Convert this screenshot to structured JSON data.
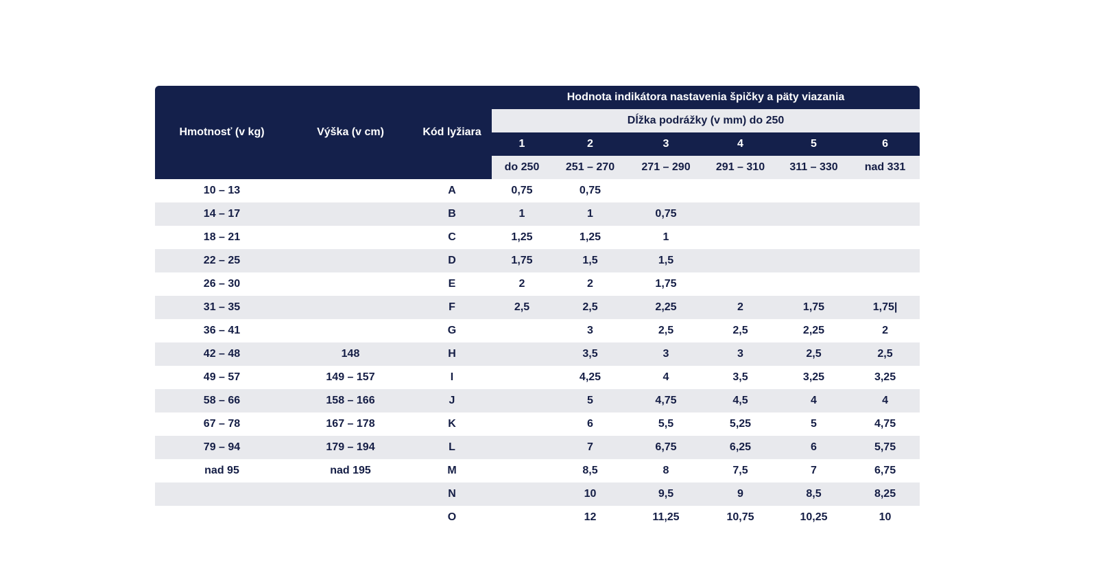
{
  "header": {
    "weight": "Hmotnosť (v kg)",
    "height": "Výška (v cm)",
    "code": "Kód lyžiara",
    "indicator": "Hodnota indikátora nastavenia špičky a päty viazania",
    "sole_length": "Dĺžka podrážky (v mm) do 250",
    "column_numbers": [
      "1",
      "2",
      "3",
      "4",
      "5",
      "6"
    ],
    "column_ranges": [
      "do 250",
      "251 – 270",
      "271 – 290",
      "291 – 310",
      "311 – 330",
      "nad 331"
    ]
  },
  "rows": [
    {
      "weight": "10 – 13",
      "height": "",
      "code": "A",
      "v": [
        "0,75",
        "0,75",
        "",
        "",
        "",
        ""
      ]
    },
    {
      "weight": "14 – 17",
      "height": "",
      "code": "B",
      "v": [
        "1",
        "1",
        "0,75",
        "",
        "",
        ""
      ]
    },
    {
      "weight": "18 – 21",
      "height": "",
      "code": "C",
      "v": [
        "1,25",
        "1,25",
        "1",
        "",
        "",
        ""
      ]
    },
    {
      "weight": "22 – 25",
      "height": "",
      "code": "D",
      "v": [
        "1,75",
        "1,5",
        "1,5",
        "",
        "",
        ""
      ]
    },
    {
      "weight": "26 – 30",
      "height": "",
      "code": "E",
      "v": [
        "2",
        "2",
        "1,75",
        "",
        "",
        ""
      ]
    },
    {
      "weight": "31 – 35",
      "height": "",
      "code": "F",
      "v": [
        "2,5",
        "2,5",
        "2,25",
        "2",
        "1,75",
        "1,75|"
      ]
    },
    {
      "weight": "36 – 41",
      "height": "",
      "code": "G",
      "v": [
        "",
        "3",
        "2,5",
        "2,5",
        "2,25",
        "2"
      ]
    },
    {
      "weight": "42 – 48",
      "height": "148",
      "code": "H",
      "v": [
        "",
        "3,5",
        "3",
        "3",
        "2,5",
        "2,5"
      ]
    },
    {
      "weight": "49 – 57",
      "height": "149 – 157",
      "code": "I",
      "v": [
        "",
        "4,25",
        "4",
        "3,5",
        "3,25",
        "3,25"
      ]
    },
    {
      "weight": "58 – 66",
      "height": "158 – 166",
      "code": "J",
      "v": [
        "",
        "5",
        "4,75",
        "4,5",
        "4",
        "4"
      ]
    },
    {
      "weight": "67 – 78",
      "height": "167 – 178",
      "code": "K",
      "v": [
        "",
        "6",
        "5,5",
        "5,25",
        "5",
        "4,75"
      ]
    },
    {
      "weight": "79 – 94",
      "height": "179 – 194",
      "code": "L",
      "v": [
        "",
        "7",
        "6,75",
        "6,25",
        "6",
        "5,75"
      ]
    },
    {
      "weight": "nad 95",
      "height": "nad 195",
      "code": "M",
      "v": [
        "",
        "8,5",
        "8",
        "7,5",
        "7",
        "6,75"
      ]
    },
    {
      "weight": "",
      "height": "",
      "code": "N",
      "v": [
        "",
        "10",
        "9,5",
        "9",
        "8,5",
        "8,25"
      ]
    },
    {
      "weight": "",
      "height": "",
      "code": "O",
      "v": [
        "",
        "12",
        "11,25",
        "10,75",
        "10,25",
        "10"
      ]
    }
  ],
  "colors": {
    "header_dark": "#14204b",
    "header_light": "#e9eaee",
    "row_shade": "#e8e9ed",
    "text": "#141d45"
  }
}
